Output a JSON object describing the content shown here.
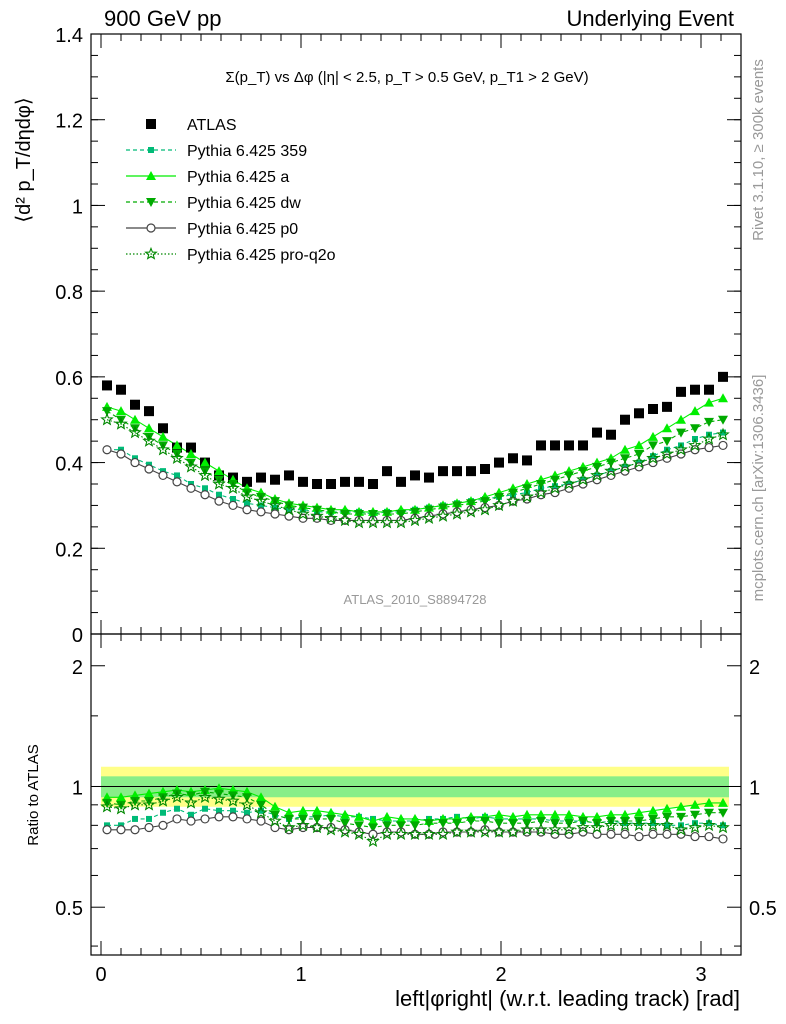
{
  "header": {
    "left": "900 GeV pp",
    "right": "Underlying Event"
  },
  "side_labels": {
    "rivet": "Rivet 3.1.10, ≥ 300k events",
    "mcplots": "mcplots.cern.ch [arXiv:1306.3436]"
  },
  "watermark": "ATLAS_2010_S8894728",
  "colors": {
    "atlas": "#000000",
    "p359": "#00bb77",
    "a": "#00ee00",
    "dw": "#00aa00",
    "p0": "#444444",
    "pro_q2o": "#008800",
    "band_outer": "#ffff88",
    "band_inner": "#88ee88"
  },
  "chart_data": [
    {
      "type": "scatter",
      "title": "Σ(p_T) vs Δφ (|η| < 2.5, p_T > 0.5 GeV, p_T1 > 2 GeV)",
      "ylabel": "⟨d² p_T/dηdφ⟩",
      "xlim": [
        -0.05,
        3.2
      ],
      "ylim": [
        0,
        1.4
      ],
      "yticks": [
        "0",
        "0.2",
        "0.4",
        "0.6",
        "0.8",
        "1",
        "1.2",
        "1.4"
      ],
      "legend_position": "top-left",
      "x": [
        0.03,
        0.1,
        0.17,
        0.24,
        0.31,
        0.38,
        0.45,
        0.52,
        0.59,
        0.66,
        0.73,
        0.8,
        0.87,
        0.94,
        1.01,
        1.08,
        1.15,
        1.22,
        1.29,
        1.36,
        1.43,
        1.5,
        1.57,
        1.64,
        1.71,
        1.78,
        1.85,
        1.92,
        1.99,
        2.06,
        2.13,
        2.2,
        2.27,
        2.34,
        2.41,
        2.48,
        2.55,
        2.62,
        2.69,
        2.76,
        2.83,
        2.9,
        2.97,
        3.04,
        3.11
      ],
      "series": [
        {
          "name": "ATLAS",
          "marker": "square",
          "y": [
            0.58,
            0.57,
            0.535,
            0.52,
            0.48,
            0.435,
            0.435,
            0.4,
            0.37,
            0.365,
            0.355,
            0.365,
            0.36,
            0.37,
            0.355,
            0.35,
            0.35,
            0.355,
            0.355,
            0.35,
            0.38,
            0.355,
            0.37,
            0.365,
            0.38,
            0.38,
            0.38,
            0.385,
            0.4,
            0.41,
            0.405,
            0.44,
            0.44,
            0.44,
            0.44,
            0.47,
            0.465,
            0.5,
            0.515,
            0.525,
            0.53,
            0.565,
            0.57,
            0.57,
            0.6
          ]
        },
        {
          "name": "Pythia 6.425 359",
          "marker": "small-square",
          "line": "dashed",
          "y": [
            0.43,
            0.43,
            0.41,
            0.395,
            0.38,
            0.37,
            0.35,
            0.34,
            0.325,
            0.315,
            0.305,
            0.3,
            0.295,
            0.29,
            0.29,
            0.285,
            0.285,
            0.285,
            0.285,
            0.28,
            0.285,
            0.285,
            0.29,
            0.295,
            0.3,
            0.305,
            0.31,
            0.315,
            0.32,
            0.325,
            0.33,
            0.34,
            0.345,
            0.35,
            0.36,
            0.37,
            0.38,
            0.39,
            0.4,
            0.415,
            0.43,
            0.44,
            0.455,
            0.465,
            0.47
          ]
        },
        {
          "name": "Pythia 6.425 a",
          "marker": "triangle-up",
          "line": "solid",
          "y": [
            0.53,
            0.52,
            0.5,
            0.48,
            0.46,
            0.44,
            0.42,
            0.4,
            0.38,
            0.36,
            0.34,
            0.33,
            0.315,
            0.305,
            0.3,
            0.295,
            0.29,
            0.29,
            0.285,
            0.285,
            0.285,
            0.29,
            0.29,
            0.295,
            0.3,
            0.305,
            0.31,
            0.32,
            0.33,
            0.34,
            0.35,
            0.36,
            0.37,
            0.38,
            0.39,
            0.4,
            0.41,
            0.43,
            0.44,
            0.46,
            0.48,
            0.5,
            0.52,
            0.54,
            0.55
          ]
        },
        {
          "name": "Pythia 6.425 dw",
          "marker": "triangle-down",
          "line": "dashed",
          "y": [
            0.52,
            0.5,
            0.48,
            0.46,
            0.44,
            0.42,
            0.4,
            0.38,
            0.36,
            0.35,
            0.33,
            0.32,
            0.31,
            0.3,
            0.295,
            0.29,
            0.285,
            0.28,
            0.28,
            0.28,
            0.28,
            0.28,
            0.285,
            0.29,
            0.295,
            0.3,
            0.305,
            0.31,
            0.32,
            0.33,
            0.34,
            0.35,
            0.36,
            0.37,
            0.38,
            0.39,
            0.4,
            0.41,
            0.42,
            0.44,
            0.45,
            0.47,
            0.48,
            0.495,
            0.5
          ]
        },
        {
          "name": "Pythia 6.425 p0",
          "marker": "open-circle",
          "line": "solid",
          "y": [
            0.43,
            0.42,
            0.4,
            0.385,
            0.37,
            0.355,
            0.34,
            0.325,
            0.31,
            0.3,
            0.29,
            0.285,
            0.28,
            0.275,
            0.27,
            0.27,
            0.265,
            0.265,
            0.265,
            0.265,
            0.265,
            0.265,
            0.27,
            0.275,
            0.28,
            0.285,
            0.29,
            0.295,
            0.3,
            0.31,
            0.315,
            0.325,
            0.33,
            0.34,
            0.35,
            0.36,
            0.37,
            0.38,
            0.39,
            0.4,
            0.41,
            0.42,
            0.43,
            0.435,
            0.44
          ]
        },
        {
          "name": "Pythia 6.425 pro-q2o",
          "marker": "open-star",
          "line": "dotted",
          "y": [
            0.5,
            0.49,
            0.47,
            0.45,
            0.43,
            0.41,
            0.39,
            0.37,
            0.35,
            0.34,
            0.32,
            0.31,
            0.3,
            0.29,
            0.28,
            0.275,
            0.27,
            0.265,
            0.26,
            0.26,
            0.26,
            0.26,
            0.265,
            0.27,
            0.275,
            0.28,
            0.285,
            0.29,
            0.3,
            0.31,
            0.32,
            0.33,
            0.34,
            0.35,
            0.36,
            0.37,
            0.38,
            0.39,
            0.4,
            0.41,
            0.42,
            0.43,
            0.44,
            0.455,
            0.465
          ]
        }
      ]
    },
    {
      "type": "scatter",
      "ylabel": "Ratio to ATLAS",
      "xlabel": "left|φright| (w.r.t. leading track) [rad]",
      "xlim": [
        -0.05,
        3.2
      ],
      "ylim": [
        0.38,
        2.4
      ],
      "ylog": true,
      "yticks": [
        "0.5",
        "1",
        "2"
      ],
      "xticks": [
        "0",
        "1",
        "2",
        "3"
      ],
      "reference_line": 1,
      "band_outer": [
        0.89,
        1.12
      ],
      "band_inner": [
        0.94,
        1.06
      ],
      "series": [
        {
          "name": "Pythia 6.425 359",
          "y": [
            0.8,
            0.8,
            0.83,
            0.83,
            0.86,
            0.88,
            0.85,
            0.88,
            0.87,
            0.87,
            0.86,
            0.87,
            0.85,
            0.83,
            0.84,
            0.84,
            0.85,
            0.84,
            0.84,
            0.83,
            0.82,
            0.82,
            0.82,
            0.83,
            0.83,
            0.84,
            0.83,
            0.84,
            0.83,
            0.83,
            0.83,
            0.83,
            0.82,
            0.82,
            0.82,
            0.81,
            0.82,
            0.81,
            0.81,
            0.81,
            0.8,
            0.8,
            0.81,
            0.81,
            0.8
          ]
        },
        {
          "name": "Pythia 6.425 a",
          "y": [
            0.94,
            0.94,
            0.95,
            0.96,
            0.97,
            0.98,
            0.97,
            0.98,
            0.99,
            0.98,
            0.97,
            0.94,
            0.89,
            0.86,
            0.87,
            0.87,
            0.86,
            0.85,
            0.84,
            0.82,
            0.84,
            0.83,
            0.83,
            0.82,
            0.83,
            0.83,
            0.84,
            0.84,
            0.85,
            0.84,
            0.85,
            0.85,
            0.85,
            0.85,
            0.84,
            0.84,
            0.85,
            0.85,
            0.86,
            0.87,
            0.88,
            0.89,
            0.9,
            0.91,
            0.91
          ]
        },
        {
          "name": "Pythia 6.425 dw",
          "y": [
            0.91,
            0.9,
            0.92,
            0.92,
            0.94,
            0.96,
            0.95,
            0.97,
            0.96,
            0.95,
            0.94,
            0.9,
            0.85,
            0.83,
            0.83,
            0.83,
            0.83,
            0.81,
            0.8,
            0.79,
            0.8,
            0.8,
            0.8,
            0.81,
            0.81,
            0.81,
            0.82,
            0.82,
            0.81,
            0.81,
            0.81,
            0.82,
            0.81,
            0.81,
            0.82,
            0.81,
            0.82,
            0.82,
            0.82,
            0.83,
            0.84,
            0.84,
            0.85,
            0.86,
            0.86
          ]
        },
        {
          "name": "Pythia 6.425 p0",
          "y": [
            0.78,
            0.78,
            0.78,
            0.79,
            0.8,
            0.83,
            0.82,
            0.83,
            0.84,
            0.84,
            0.83,
            0.82,
            0.79,
            0.78,
            0.79,
            0.79,
            0.79,
            0.78,
            0.77,
            0.76,
            0.77,
            0.77,
            0.76,
            0.76,
            0.77,
            0.77,
            0.77,
            0.78,
            0.77,
            0.77,
            0.77,
            0.77,
            0.76,
            0.76,
            0.77,
            0.76,
            0.76,
            0.76,
            0.75,
            0.76,
            0.76,
            0.76,
            0.75,
            0.75,
            0.74
          ]
        },
        {
          "name": "Pythia 6.425 pro-q2o",
          "y": [
            0.89,
            0.88,
            0.9,
            0.9,
            0.92,
            0.94,
            0.91,
            0.94,
            0.93,
            0.92,
            0.9,
            0.86,
            0.82,
            0.79,
            0.8,
            0.79,
            0.78,
            0.77,
            0.76,
            0.73,
            0.76,
            0.76,
            0.76,
            0.76,
            0.76,
            0.77,
            0.77,
            0.77,
            0.77,
            0.77,
            0.78,
            0.78,
            0.78,
            0.78,
            0.79,
            0.79,
            0.8,
            0.8,
            0.8,
            0.8,
            0.8,
            0.78,
            0.79,
            0.8,
            0.79
          ]
        }
      ]
    }
  ]
}
